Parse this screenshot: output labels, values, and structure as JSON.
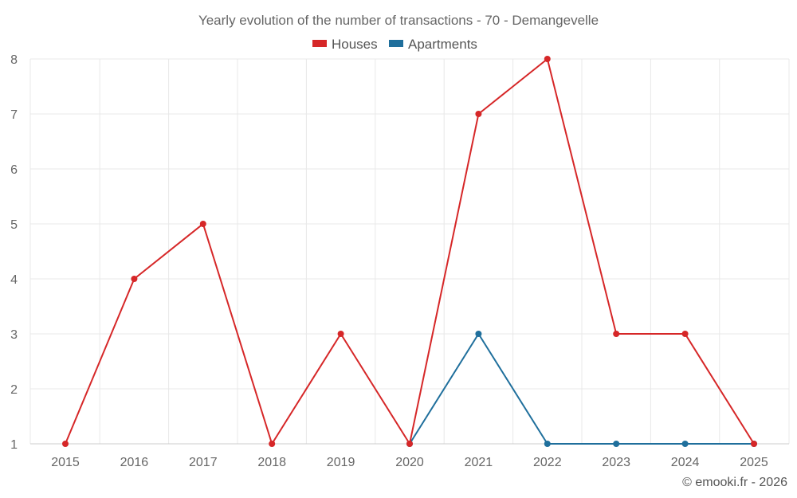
{
  "chart_data": {
    "type": "line",
    "title": "Yearly evolution of the number of transactions - 70 - Demangevelle",
    "x": [
      2015,
      2016,
      2017,
      2018,
      2019,
      2020,
      2021,
      2022,
      2023,
      2024,
      2025
    ],
    "x_tick_labels": [
      "2015",
      "2016",
      "2017",
      "2018",
      "2019",
      "2020",
      "2021",
      "2022",
      "2023",
      "2024",
      "2025"
    ],
    "ylim": [
      1,
      8
    ],
    "y_ticks": [
      1,
      2,
      3,
      4,
      5,
      6,
      7,
      8
    ],
    "grid": true,
    "legend_position": "top-center",
    "series": [
      {
        "name": "Houses",
        "color": "#d62728",
        "values": [
          1,
          4,
          5,
          1,
          3,
          1,
          7,
          8,
          3,
          3,
          1
        ]
      },
      {
        "name": "Apartments",
        "color": "#1f6f9c",
        "values": [
          null,
          null,
          null,
          null,
          null,
          1,
          3,
          1,
          1,
          1,
          1
        ]
      }
    ]
  },
  "credit": "© emooki.fr - 2026"
}
